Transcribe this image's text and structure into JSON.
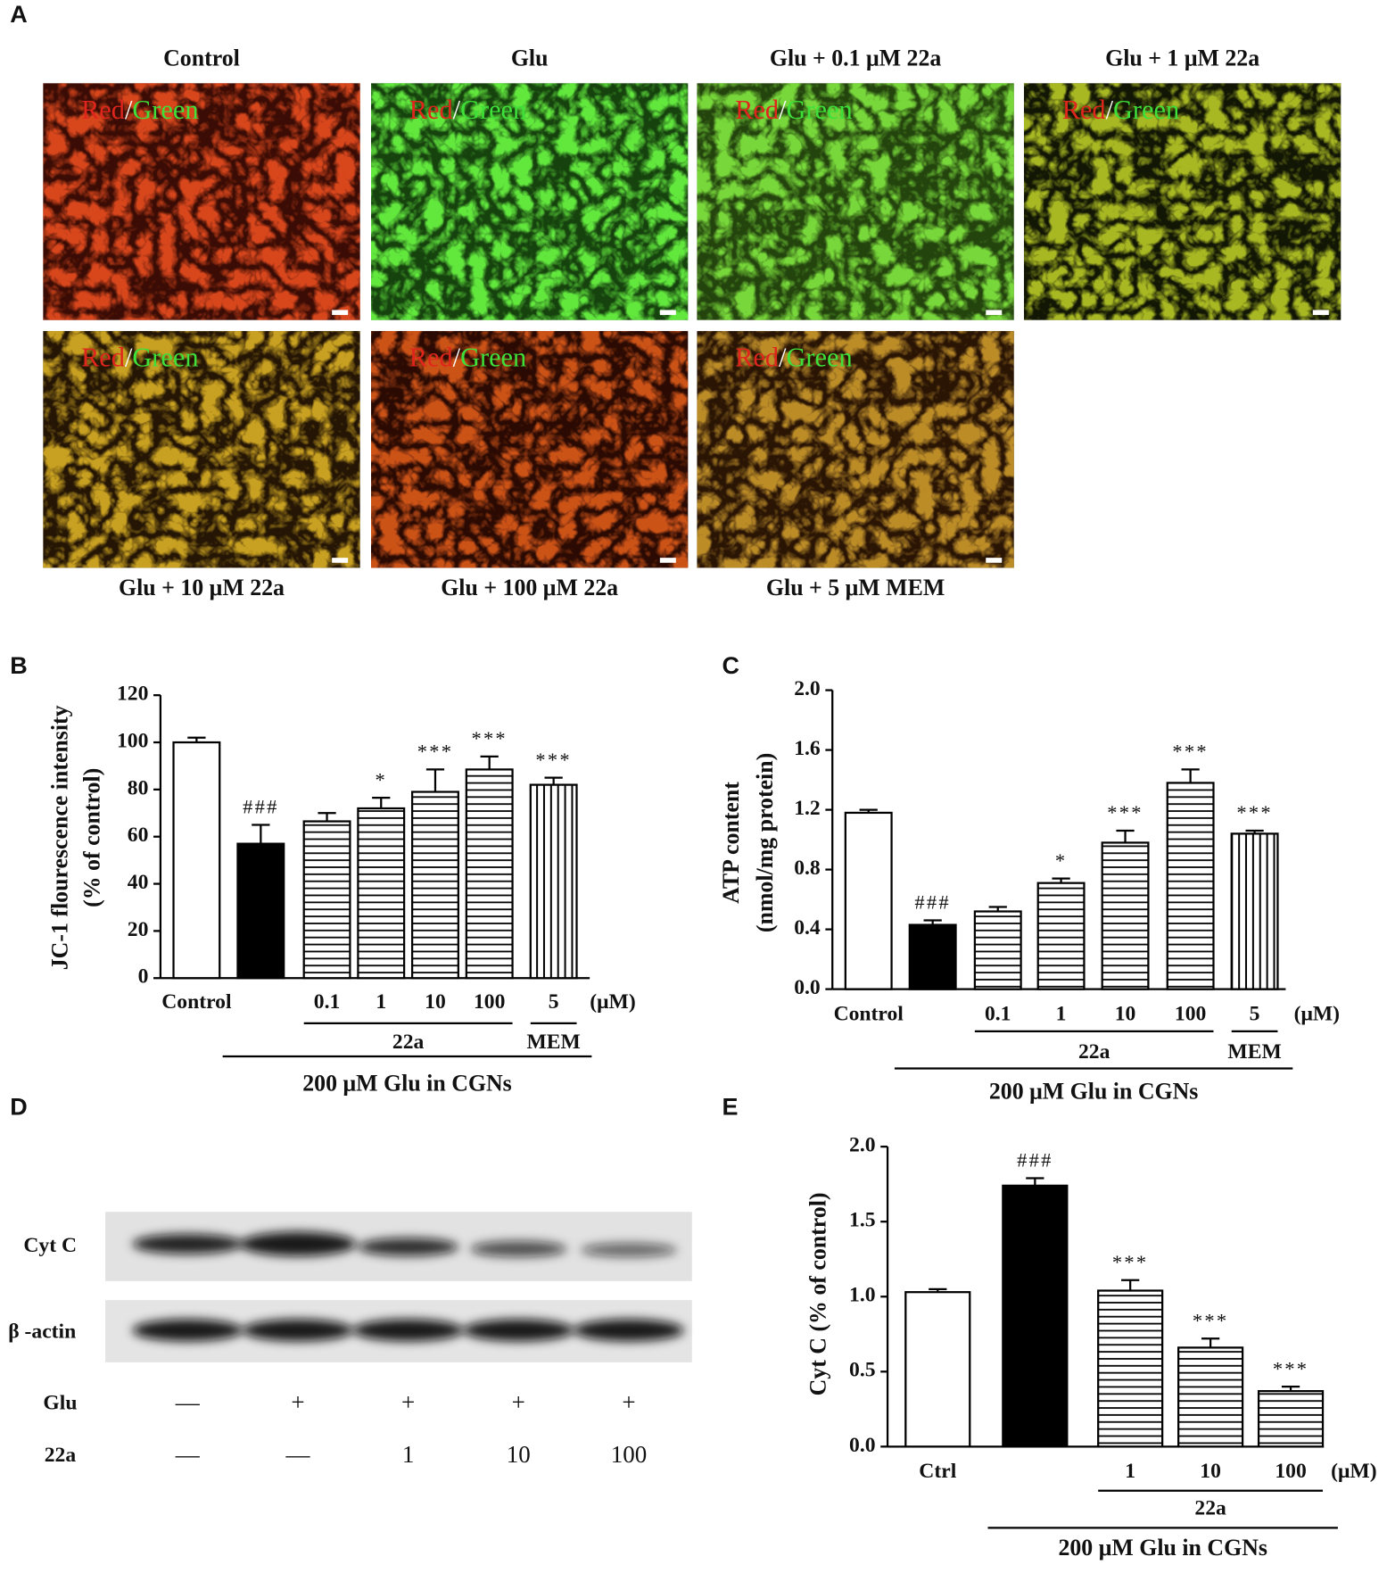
{
  "panels": {
    "a": "A",
    "b": "B",
    "c": "C",
    "d": "D",
    "e": "E"
  },
  "micrographs": {
    "labels": [
      "Control",
      "Glu",
      "Glu + 0.1 μM 22a",
      "Glu + 1 μM 22a",
      "Glu + 10 μM 22a",
      "Glu + 100 μM 22a",
      "Glu + 5 μM MEM"
    ],
    "overlay": {
      "red": "Red",
      "sep": "/",
      "green": "Green"
    }
  },
  "western_blot": {
    "bands": [
      "Cyt C",
      "β -actin"
    ],
    "rows": [
      {
        "label": "Glu",
        "lanes": [
          "—",
          "+",
          "+",
          "+",
          "+"
        ]
      },
      {
        "label": "22a",
        "lanes": [
          "—",
          "—",
          "1",
          "10",
          "100"
        ]
      }
    ]
  },
  "chart_data": [
    {
      "type": "bar",
      "ylabel": [
        "JC-1 flourescence intensity",
        "(% of control)"
      ],
      "categories": [
        "Control",
        null,
        "0.1",
        "1",
        "10",
        "100",
        "5"
      ],
      "values": [
        100,
        57,
        66.5,
        72,
        79,
        88.5,
        82
      ],
      "errors": [
        2,
        8,
        3.5,
        4.5,
        9.5,
        5.5,
        3
      ],
      "fills": [
        "white",
        "black",
        "horizontal-stripes",
        "horizontal-stripes",
        "horizontal-stripes",
        "horizontal-stripes",
        "vertical-stripes"
      ],
      "significance": [
        null,
        "###",
        null,
        "*",
        "***",
        "***",
        "***"
      ],
      "ylim": [
        0,
        120
      ],
      "yticks": [
        0,
        20,
        40,
        60,
        80,
        100,
        120
      ],
      "unit": "(μM)",
      "groups": [
        {
          "label": "22a",
          "from": 2,
          "to": 5
        },
        {
          "label": "MEM",
          "from": 6,
          "to": 6
        },
        {
          "label": "200 μM Glu in CGNs",
          "from": 1,
          "to": 6
        }
      ]
    },
    {
      "type": "bar",
      "ylabel": [
        "ATP content",
        "(nmol/mg protein)"
      ],
      "categories": [
        "Control",
        null,
        "0.1",
        "1",
        "10",
        "100",
        "5"
      ],
      "values": [
        1.18,
        0.43,
        0.52,
        0.71,
        0.98,
        1.38,
        1.04
      ],
      "errors": [
        0.02,
        0.03,
        0.03,
        0.03,
        0.08,
        0.09,
        0.02
      ],
      "fills": [
        "white",
        "black",
        "horizontal-stripes",
        "horizontal-stripes",
        "horizontal-stripes",
        "horizontal-stripes",
        "vertical-stripes"
      ],
      "significance": [
        null,
        "###",
        null,
        "*",
        "***",
        "***",
        "***"
      ],
      "ylim": [
        0,
        2
      ],
      "yticks": [
        {
          "value": 0,
          "label": "0.0"
        },
        0.4,
        0.8,
        1.2,
        1.6,
        {
          "value": 2,
          "label": "2.0"
        }
      ],
      "unit": "(μM)",
      "groups": [
        {
          "label": "22a",
          "from": 2,
          "to": 5
        },
        {
          "label": "MEM",
          "from": 6,
          "to": 6
        },
        {
          "label": "200 μM Glu in CGNs",
          "from": 1,
          "to": 6
        }
      ]
    },
    {
      "type": "bar",
      "ylabel": [
        "Cyt C (% of control)"
      ],
      "categories": [
        "Ctrl",
        null,
        "1",
        "10",
        "100"
      ],
      "values": [
        1.03,
        1.74,
        1.04,
        0.66,
        0.37
      ],
      "errors": [
        0.02,
        0.05,
        0.07,
        0.06,
        0.03
      ],
      "fills": [
        "white",
        "black",
        "horizontal-stripes",
        "horizontal-stripes",
        "horizontal-stripes"
      ],
      "significance": [
        null,
        "###",
        "***",
        "***",
        "***"
      ],
      "ylim": [
        0,
        2
      ],
      "yticks": [
        {
          "value": 0,
          "label": "0.0"
        },
        0.5,
        {
          "value": 1,
          "label": "1.0"
        },
        1.5,
        {
          "value": 2,
          "label": "2.0"
        }
      ],
      "unit": "(μM)",
      "groups": [
        {
          "label": "22a",
          "from": 2,
          "to": 4
        },
        {
          "label": "200 μM Glu in CGNs",
          "from": 1,
          "to": 4
        }
      ]
    }
  ]
}
